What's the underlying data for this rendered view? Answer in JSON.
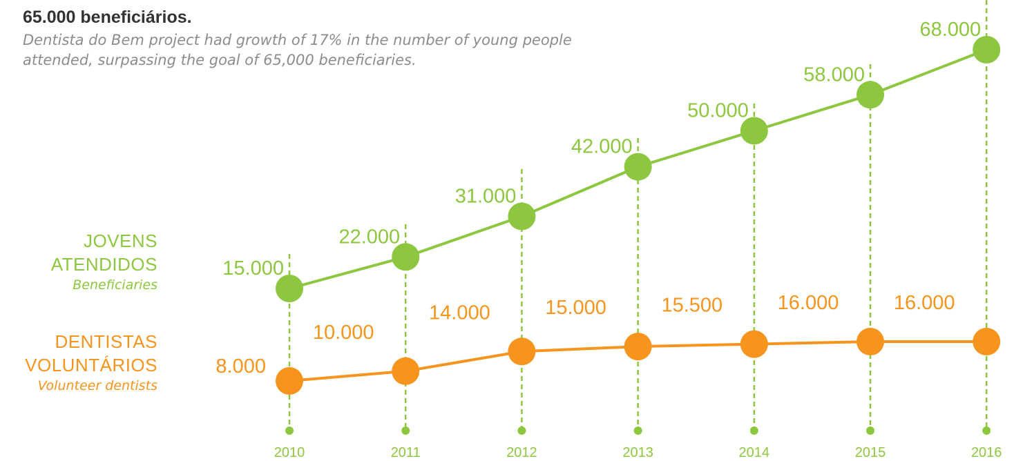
{
  "header": {
    "title": "65.000 beneficiários.",
    "subtitle": "Dentista do Bem project had growth of 17% in the number of young people attended, surpassing the goal of 65,000 beneficiaries."
  },
  "legend": {
    "youth": {
      "title_line1": "JOVENS",
      "title_line2": "ATENDIDOS",
      "subtitle": "Beneficiaries"
    },
    "dentists": {
      "title_line1": "DENTISTAS",
      "title_line2": "VOLUNTÁRIOS",
      "subtitle": "Volunteer dentists"
    }
  },
  "colors": {
    "green": "#8dc63f",
    "orange": "#f7941d",
    "title_text": "#333333",
    "subtitle_text": "#8c8c8c"
  },
  "chart_data": {
    "type": "line",
    "categories": [
      "2010",
      "2011",
      "2012",
      "2013",
      "2014",
      "2015",
      "2016"
    ],
    "series": [
      {
        "name": "JOVENS ATENDIDOS",
        "color": "#8dc63f",
        "values": [
          15000,
          22000,
          31000,
          42000,
          50000,
          58000,
          68000
        ],
        "labels": [
          "15.000",
          "22.000",
          "31.000",
          "42.000",
          "50.000",
          "58.000",
          "68.000"
        ]
      },
      {
        "name": "DENTISTAS VOLUNTÁRIOS",
        "color": "#f7941d",
        "values": [
          8000,
          10000,
          14000,
          15000,
          15500,
          16000,
          16000
        ],
        "labels": [
          "8.000",
          "10.000",
          "14.000",
          "15.000",
          "15.500",
          "16.000",
          "16.000"
        ]
      }
    ],
    "grid": "dashed vertical drop lines at each year",
    "legend_position": "left"
  }
}
